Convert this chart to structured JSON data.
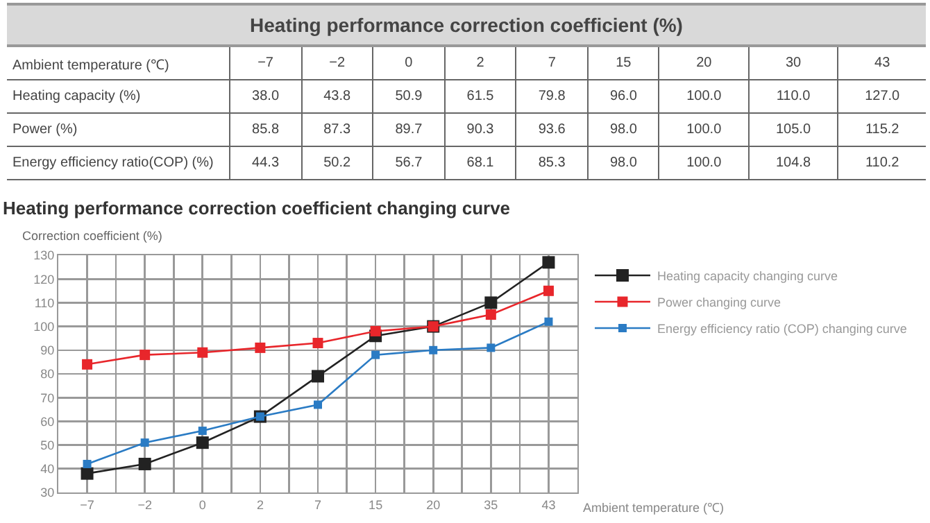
{
  "chart_data": [
    {
      "type": "other",
      "title": "Heating performance correction coefficient (%)",
      "xlabel": "Ambient temperature (℃)",
      "categories": [
        "−7",
        "−2",
        "0",
        "2",
        "7",
        "15",
        "20",
        "30",
        "43"
      ],
      "y_categories": [
        "Heating capacity (%)",
        "Power (%)",
        "Energy efficiency ratio(COP) (%)"
      ],
      "cell_labels": [
        [
          "38.0",
          "43.8",
          "50.9",
          "61.5",
          "79.8",
          "96.0",
          "100.0",
          "110.0",
          "127.0"
        ],
        [
          "85.8",
          "87.3",
          "89.7",
          "90.3",
          "93.6",
          "98.0",
          "100.0",
          "105.0",
          "115.2"
        ],
        [
          "44.3",
          "50.2",
          "56.7",
          "68.1",
          "85.3",
          "98.0",
          "100.0",
          "104.8",
          "110.2"
        ]
      ]
    },
    {
      "type": "line",
      "title": "Heating performance correction coefficient changing curve",
      "ylabel": "Correction coefficient (%)",
      "xlabel": "Ambient temperature (℃)",
      "categories": [
        "−7",
        "−2",
        "0",
        "2",
        "7",
        "15",
        "20",
        "35",
        "43"
      ],
      "series": [
        {
          "name": "Heating capacity changing curve",
          "color": "#222222",
          "values": [
            38,
            42,
            51,
            62,
            79,
            96,
            100,
            110,
            127
          ]
        },
        {
          "name": "Power changing curve",
          "color": "#e8262b",
          "values": [
            84,
            88,
            89,
            91,
            93,
            98,
            100,
            105,
            115
          ]
        },
        {
          "name": "Energy efficiency ratio (COP) changing curve",
          "color": "#2a7bc4",
          "values": [
            42,
            51,
            56,
            62,
            67,
            88,
            90,
            91,
            102
          ]
        }
      ],
      "ylim": [
        30,
        130
      ],
      "yticks": [
        30,
        40,
        50,
        60,
        70,
        80,
        90,
        100,
        110,
        120,
        130
      ],
      "grid": true,
      "legend": "right",
      "marker": "square",
      "line_style": "solid"
    }
  ]
}
